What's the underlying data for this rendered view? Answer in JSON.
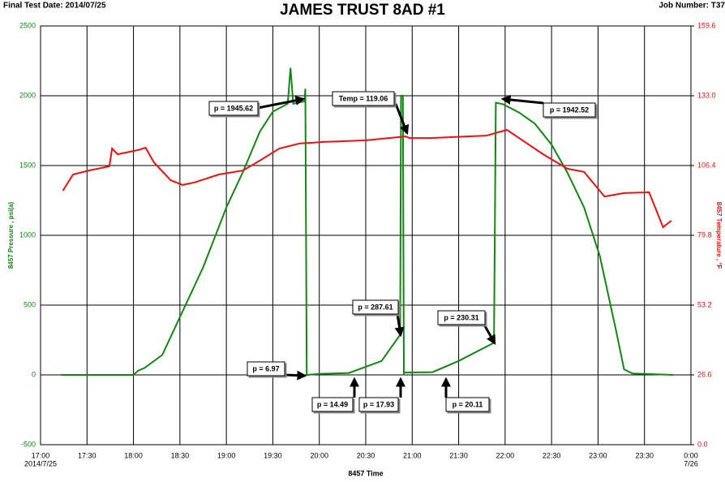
{
  "chart_data": {
    "type": "line",
    "title": "JAMES TRUST 8AD #1",
    "header_left": "Final Test Date: 2014/07/25",
    "header_right": "Job Number: T37",
    "xlabel": "8457 Time",
    "ylabel": "8457 Pressure , psi(a)",
    "y2label": "8457 Temperature , °F",
    "date_labels": [
      "2014/7/25",
      "7/26"
    ],
    "grid": true,
    "xlim": [
      17,
      24
    ],
    "xticks": [
      {
        "value": 17,
        "label": "17:00"
      },
      {
        "value": 17.5,
        "label": "17:30"
      },
      {
        "value": 18,
        "label": "18:00"
      },
      {
        "value": 18.5,
        "label": "18:30"
      },
      {
        "value": 19,
        "label": "19:00"
      },
      {
        "value": 19.5,
        "label": "19:30"
      },
      {
        "value": 20,
        "label": "20:00"
      },
      {
        "value": 20.5,
        "label": "20:30"
      },
      {
        "value": 21,
        "label": "21:00"
      },
      {
        "value": 21.5,
        "label": "21:30"
      },
      {
        "value": 22,
        "label": "22:00"
      },
      {
        "value": 22.5,
        "label": "22:30"
      },
      {
        "value": 23,
        "label": "23:00"
      },
      {
        "value": 23.5,
        "label": "23:30"
      },
      {
        "value": 24,
        "label": "0:00"
      }
    ],
    "ylim": [
      -500,
      2500
    ],
    "yticks": [
      -500,
      0,
      500,
      1000,
      1500,
      2000,
      2500
    ],
    "y2lim": [
      0,
      159.6
    ],
    "y2ticks": [
      {
        "value": 0,
        "label": "0.0"
      },
      26.6,
      53.2,
      79.8,
      106.4,
      {
        "value": 133,
        "label": "133.0"
      },
      159.6
    ],
    "series": [
      {
        "name": "8457 Pressure",
        "color": "#118811",
        "x": [
          17.22,
          18.0,
          18.05,
          18.12,
          18.31,
          18.49,
          18.75,
          19.0,
          19.18,
          19.36,
          19.5,
          19.66,
          19.69,
          19.72,
          19.84,
          19.85,
          19.865,
          20.0,
          20.32,
          20.67,
          20.87,
          20.88,
          20.9,
          20.91,
          20.92,
          21.22,
          21.5,
          21.88,
          21.9,
          21.975,
          22.15,
          22.32,
          22.5,
          22.67,
          22.85,
          23.02,
          23.2,
          23.28,
          23.37,
          23.81
        ],
        "values": [
          0,
          0,
          30,
          50,
          143,
          400,
          771,
          1200,
          1457,
          1743,
          1886,
          1943,
          2200,
          1943,
          1960,
          2050,
          0,
          7,
          14,
          100,
          287,
          2000,
          2000,
          10,
          17,
          20,
          100,
          230,
          1950,
          1940,
          1880,
          1800,
          1650,
          1450,
          1200,
          850,
          300,
          40,
          10,
          0
        ]
      },
      {
        "name": "8457 Temperature",
        "color": "#ee1111",
        "axis": "y2",
        "x": [
          17.24,
          17.35,
          17.52,
          17.74,
          17.77,
          17.83,
          18.05,
          18.13,
          18.22,
          18.4,
          18.53,
          18.66,
          18.92,
          19.18,
          19.36,
          19.57,
          19.79,
          20.05,
          20.49,
          20.93,
          20.97,
          21.19,
          21.8,
          22.02,
          22.15,
          22.41,
          22.67,
          22.85,
          23.07,
          23.28,
          23.55,
          23.63,
          23.7,
          23.79
        ],
        "values": [
          96.8,
          103,
          104.5,
          106.1,
          112.9,
          110.7,
          112.3,
          113.2,
          107.6,
          100.8,
          99,
          100,
          103,
          104.5,
          108.3,
          112.9,
          114.8,
          115.4,
          116,
          117.5,
          116.9,
          116.9,
          117.8,
          120,
          116.9,
          110.7,
          105.2,
          104,
          94.6,
          95.9,
          96.2,
          89.1,
          82.9,
          85.4
        ]
      }
    ],
    "annotations": [
      "p = 1945.62",
      "Temp = 119.06",
      "p = 1942.52",
      "p = 287.61",
      "p = 230.31",
      "p = 6.97",
      "p = 14.49",
      "p = 17.93",
      "p = 20.11"
    ]
  }
}
